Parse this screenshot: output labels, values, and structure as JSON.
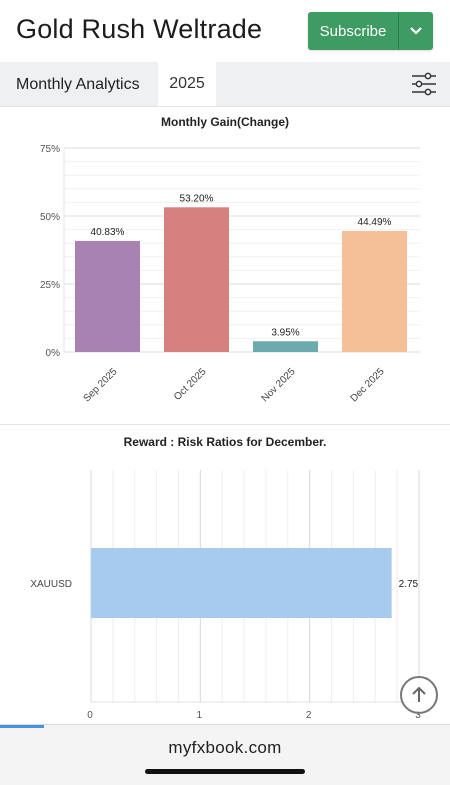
{
  "header": {
    "title": "Gold Rush Weltrade",
    "subscribe_label": "Subscribe",
    "subscribe_color": "#3e9b62"
  },
  "tabs": {
    "monthly_label": "Monthly Analytics",
    "year_label": "2025",
    "filter_icon": "sliders-icon"
  },
  "chart_data": [
    {
      "type": "bar",
      "title": "Monthly Gain(Change)",
      "categories": [
        "Sep 2025",
        "Oct 2025",
        "Nov 2025",
        "Dec 2025"
      ],
      "values": [
        40.83,
        53.2,
        3.95,
        44.49
      ],
      "data_labels": [
        "40.83%",
        "53.20%",
        "3.95%",
        "44.49%"
      ],
      "colors": [
        "#a883b1",
        "#d4817f",
        "#6aabae",
        "#f5bf97"
      ],
      "yticks": [
        "0%",
        "25%",
        "50%",
        "75%"
      ],
      "ylim": [
        0,
        75
      ],
      "grid": true
    },
    {
      "type": "bar",
      "orientation": "horizontal",
      "title": "Reward : Risk Ratios for December.",
      "categories": [
        "XAUUSD"
      ],
      "values": [
        2.75
      ],
      "data_labels": [
        "2.75"
      ],
      "colors": [
        "#a7cbee"
      ],
      "xticks": [
        "0",
        "1",
        "2",
        "3"
      ],
      "xlim": [
        0,
        3
      ],
      "grid": true
    }
  ],
  "controls": {
    "scroll_top_icon": "arrow-up-circle-icon"
  },
  "footer": {
    "url": "myfxbook.com"
  }
}
